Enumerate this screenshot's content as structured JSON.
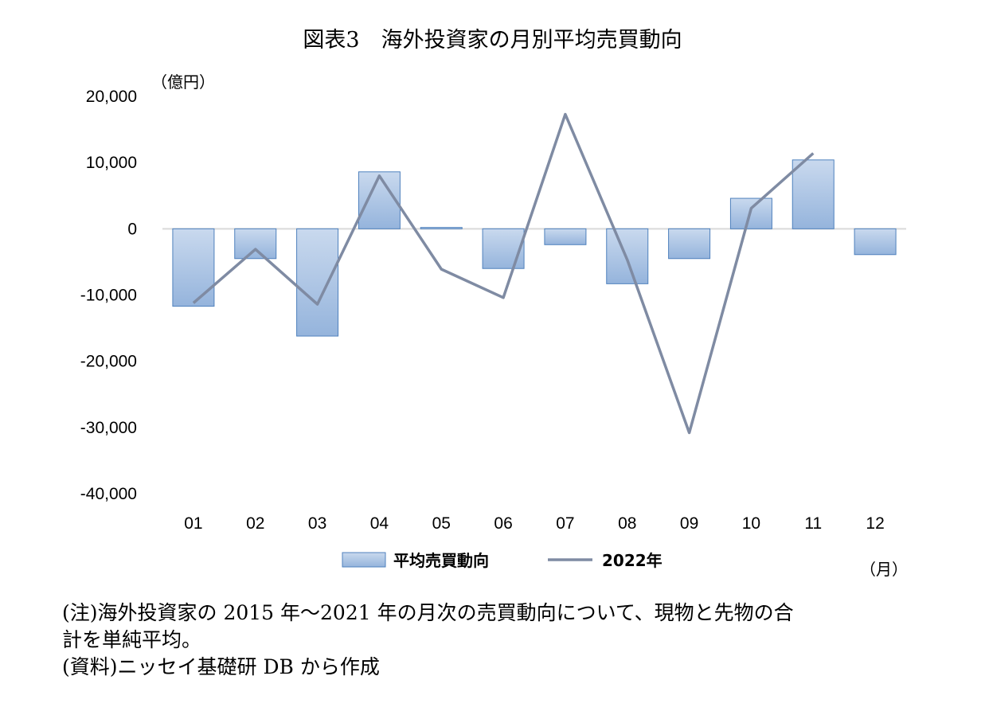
{
  "title": "図表3　海外投資家の月別平均売買動向",
  "chart_data": {
    "type": "bar",
    "y_unit_label": "（億円）",
    "x_unit_label": "（月）",
    "categories": [
      "01",
      "02",
      "03",
      "04",
      "05",
      "06",
      "07",
      "08",
      "09",
      "10",
      "11",
      "12"
    ],
    "series": [
      {
        "name": "平均売買動向",
        "type": "bar",
        "values": [
          -11700,
          -4500,
          -16200,
          8600,
          200,
          -6000,
          -2400,
          -8300,
          -4500,
          4600,
          10400,
          -3900
        ]
      },
      {
        "name": "2022年",
        "type": "line",
        "values": [
          -11200,
          -3100,
          -11400,
          8000,
          -6100,
          -10400,
          17300,
          -4700,
          -30800,
          3100,
          11400,
          null
        ]
      }
    ],
    "ylim": [
      -40000,
      20000
    ],
    "yticks": [
      20000,
      10000,
      0,
      -10000,
      -20000,
      -30000,
      -40000
    ],
    "ytick_labels": [
      "20,000",
      "10,000",
      "0",
      "-10,000",
      "-20,000",
      "-30,000",
      "-40,000"
    ],
    "legend_position": "bottom",
    "colors": {
      "bar_fill_top": "#c9d9ee",
      "bar_fill_bottom": "#95b4dc",
      "bar_stroke": "#4f81bd",
      "line": "#7f8ba3",
      "zero_line": "#d9d9d9"
    }
  },
  "notes": [
    "(注)海外投資家の 2015 年～2021 年の月次の売買動向について、現物と先物の合",
    "計を単純平均。",
    "(資料)ニッセイ基礎研 DB から作成"
  ]
}
